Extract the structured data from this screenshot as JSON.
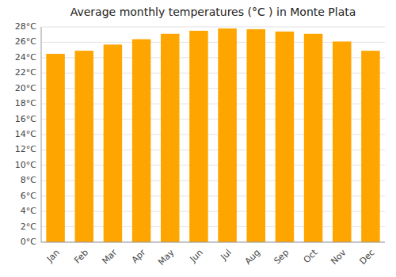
{
  "chart_data": {
    "type": "bar",
    "title": "Average monthly temperatures (°C ) in Monte Plata",
    "categories": [
      "Jan",
      "Feb",
      "Mar",
      "Apr",
      "May",
      "Jun",
      "Jul",
      "Aug",
      "Sep",
      "Oct",
      "Nov",
      "Dec"
    ],
    "values": [
      24.5,
      24.9,
      25.7,
      26.4,
      27.1,
      27.5,
      27.8,
      27.7,
      27.4,
      27.1,
      26.1,
      24.9
    ],
    "color": "#FFA500",
    "ylim": [
      0,
      28
    ],
    "yticks": [
      {
        "value": 0,
        "label": "0°C"
      },
      {
        "value": 2,
        "label": "2°C"
      },
      {
        "value": 4,
        "label": "4°C"
      },
      {
        "value": 6,
        "label": "6°C"
      },
      {
        "value": 8,
        "label": "8°C"
      },
      {
        "value": 10,
        "label": "10°C"
      },
      {
        "value": 12,
        "label": "12°C"
      },
      {
        "value": 14,
        "label": "14°C"
      },
      {
        "value": 16,
        "label": "16°C"
      },
      {
        "value": 18,
        "label": "18°C"
      },
      {
        "value": 20,
        "label": "20°C"
      },
      {
        "value": 22,
        "label": "22°C"
      },
      {
        "value": 24,
        "label": "24°C"
      },
      {
        "value": 26,
        "label": "26°C"
      },
      {
        "value": 28,
        "label": "28°C"
      }
    ],
    "grid": true
  }
}
